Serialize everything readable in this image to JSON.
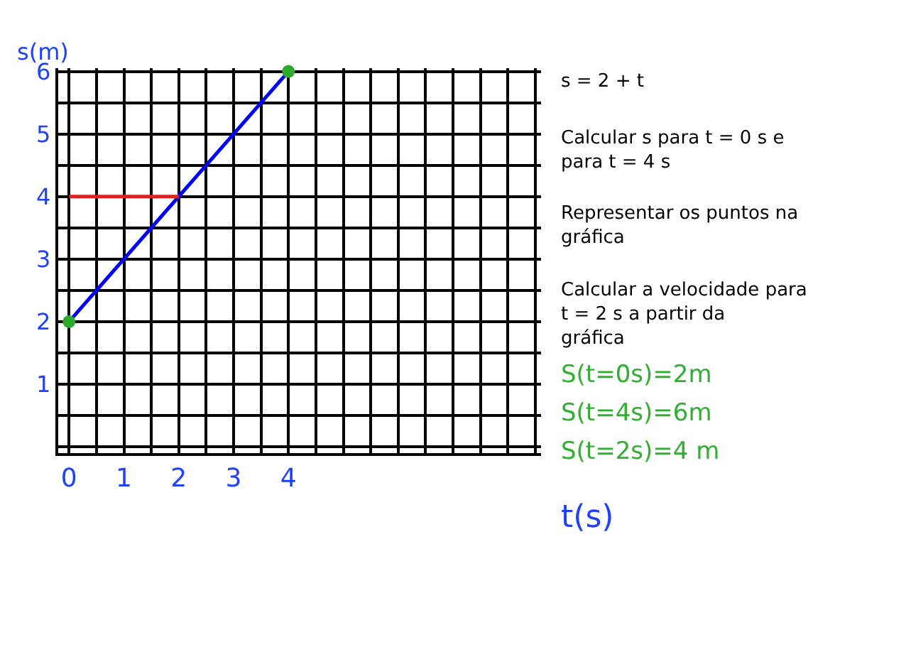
{
  "chart_data": {
    "type": "line",
    "xlabel": "t(s)",
    "ylabel": "s(m)",
    "x": [
      0,
      4
    ],
    "series": [
      {
        "color": "#0000ff",
        "values": [
          2,
          6
        ]
      },
      {
        "color": "#e02020",
        "x": [
          0,
          2
        ],
        "values": [
          4,
          4
        ]
      },
      {
        "type": "scatter",
        "color": "#2eaa2e",
        "marker": "circle",
        "values": [
          2,
          6
        ]
      }
    ],
    "xlim": [
      -0.2,
      8.6
    ],
    "ylim": [
      -0.1,
      6.05
    ],
    "xticks": [
      0,
      {
        "value": 0.5,
        "label": null
      },
      1,
      {
        "value": 1.5,
        "label": null
      },
      2,
      {
        "value": 2.5,
        "label": null
      },
      3,
      {
        "value": 3.5,
        "label": null
      },
      4,
      {
        "value": 4.5,
        "label": null
      },
      {
        "value": 5,
        "label": null
      },
      {
        "value": 5.5,
        "label": null
      },
      {
        "value": 6,
        "label": null
      },
      {
        "value": 6.5,
        "label": null
      },
      {
        "value": 7,
        "label": null
      },
      {
        "value": 7.5,
        "label": null
      },
      {
        "value": 8,
        "label": null
      },
      {
        "value": 8.5,
        "label": null
      }
    ],
    "yticks": [
      {
        "value": 0,
        "label": null
      },
      {
        "value": 0.5,
        "label": null
      },
      1,
      {
        "value": 1.5,
        "label": null
      },
      2,
      {
        "value": 2.5,
        "label": null
      },
      3,
      {
        "value": 3.5,
        "label": null
      },
      4,
      {
        "value": 4.5,
        "label": null
      },
      5,
      {
        "value": 5.5,
        "label": null
      },
      6
    ],
    "grid": true,
    "line_style": "solid",
    "annotations": [
      "s = 2 + t",
      "Calcular s para t = 0 s e para t = 4 s",
      "Representar os puntos na gráfica",
      "Calcular a velocidade para t = 2 s a partir da gráfica",
      "S(t=0s)=2m",
      "S(t=4s)=6m",
      "S(t=2s)=4 m"
    ]
  }
}
